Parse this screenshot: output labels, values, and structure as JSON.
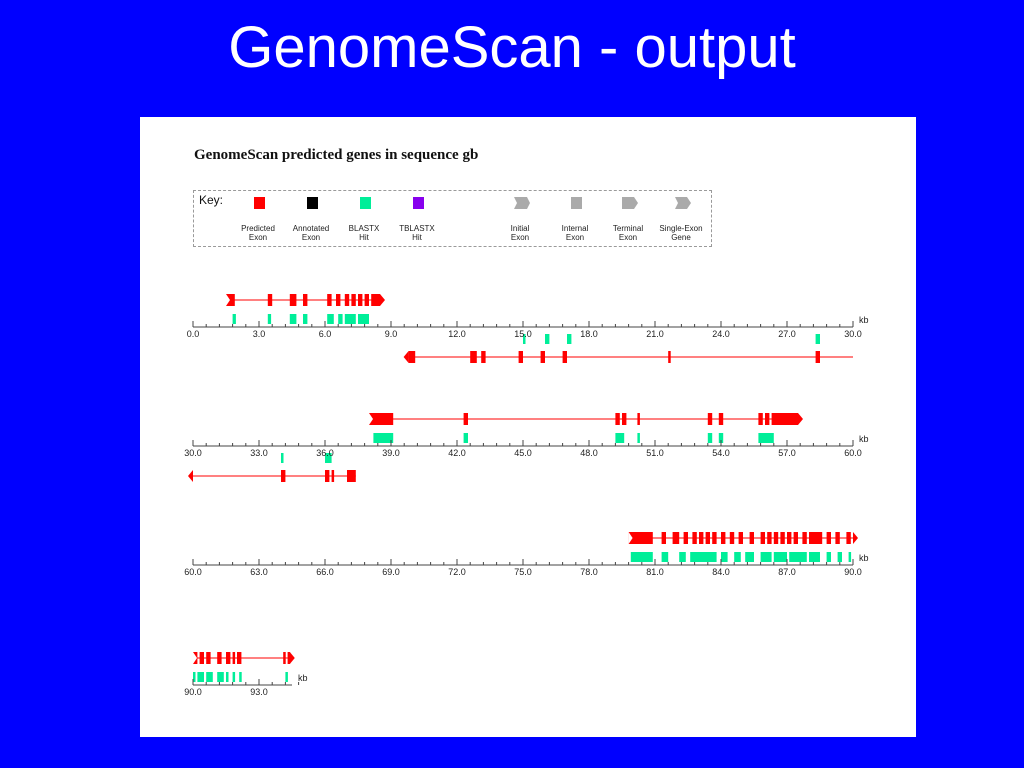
{
  "slide": {
    "title": "GenomeScan - output"
  },
  "figure": {
    "title": "GenomeScan predicted genes in sequence gb",
    "unit_label": "kb"
  },
  "key": {
    "label": "Key:",
    "items": [
      {
        "name": "predicted-exon",
        "line1": "Predicted",
        "line2": "Exon",
        "color": "#ff0000",
        "shape": "square"
      },
      {
        "name": "annotated-exon",
        "line1": "Annotated",
        "line2": "Exon",
        "color": "#000000",
        "shape": "square"
      },
      {
        "name": "blastx-hit",
        "line1": "BLASTX",
        "line2": "Hit",
        "color": "#00ee99",
        "shape": "square"
      },
      {
        "name": "tblastx-hit",
        "line1": "TBLASTX",
        "line2": "Hit",
        "color": "#8800ee",
        "shape": "square"
      },
      {
        "name": "initial-exon",
        "line1": "Initial",
        "line2": "Exon",
        "color": "#aaaaaa",
        "shape": "initial"
      },
      {
        "name": "internal-exon",
        "line1": "Internal",
        "line2": "Exon",
        "color": "#aaaaaa",
        "shape": "square"
      },
      {
        "name": "terminal-exon",
        "line1": "Terminal",
        "line2": "Exon",
        "color": "#aaaaaa",
        "shape": "terminal"
      },
      {
        "name": "single-exon-gene",
        "line1": "Single-Exon",
        "line2": "Gene",
        "color": "#aaaaaa",
        "shape": "single"
      }
    ]
  },
  "colors": {
    "exon": "#ff0000",
    "blastx": "#00ee99",
    "axis": "#444444"
  },
  "chart_data": {
    "type": "gene_map",
    "rows": [
      {
        "start": 0.0,
        "end": 30.0,
        "ticks": [
          "0.0",
          "3.0",
          "6.0",
          "9.0",
          "12.0",
          "15.0",
          "18.0",
          "21.0",
          "24.0",
          "27.0",
          "30.0"
        ],
        "forward_genes": [
          {
            "span": [
              1.5,
              8.5
            ],
            "exons": [
              [
                1.5,
                1.9
              ],
              [
                3.4,
                3.6
              ],
              [
                4.4,
                4.7
              ],
              [
                5.0,
                5.2
              ],
              [
                6.1,
                6.3
              ],
              [
                6.5,
                6.7
              ],
              [
                6.9,
                7.1
              ],
              [
                7.2,
                7.4
              ],
              [
                7.5,
                7.7
              ],
              [
                7.8,
                8.0
              ],
              [
                8.1,
                8.5
              ]
            ]
          }
        ],
        "forward_hits": [
          [
            1.8,
            1.95
          ],
          [
            3.4,
            3.55
          ],
          [
            4.4,
            4.7
          ],
          [
            5.0,
            5.2
          ],
          [
            6.1,
            6.4
          ],
          [
            6.6,
            6.8
          ],
          [
            6.9,
            7.4
          ],
          [
            7.5,
            8.0
          ]
        ],
        "reverse_genes": [
          {
            "span": [
              9.8,
              30.0
            ],
            "exons": [
              [
                9.8,
                10.1
              ],
              [
                12.6,
                12.9
              ],
              [
                13.1,
                13.3
              ],
              [
                14.8,
                15.0
              ],
              [
                15.8,
                16.0
              ],
              [
                16.8,
                17.0
              ],
              [
                21.6,
                21.7
              ],
              [
                28.3,
                28.5
              ]
            ]
          }
        ],
        "reverse_hits": [
          [
            15.0,
            15.1
          ],
          [
            16.0,
            16.2
          ],
          [
            17.0,
            17.2
          ],
          [
            28.3,
            28.5
          ]
        ]
      },
      {
        "start": 30.0,
        "end": 60.0,
        "ticks": [
          "30.0",
          "33.0",
          "36.0",
          "39.0",
          "42.0",
          "45.0",
          "48.0",
          "51.0",
          "54.0",
          "57.0",
          "60.0"
        ],
        "forward_genes": [
          {
            "span": [
              38.0,
              57.5
            ],
            "exons": [
              [
                38.0,
                39.1
              ],
              [
                42.3,
                42.5
              ],
              [
                49.2,
                49.4
              ],
              [
                49.5,
                49.7
              ],
              [
                50.2,
                50.3
              ],
              [
                53.4,
                53.6
              ],
              [
                53.9,
                54.1
              ],
              [
                55.7,
                55.9
              ],
              [
                56.0,
                56.2
              ],
              [
                56.3,
                57.5
              ]
            ]
          }
        ],
        "forward_hits": [
          [
            38.2,
            39.1
          ],
          [
            42.3,
            42.5
          ],
          [
            49.2,
            49.6
          ],
          [
            50.2,
            50.3
          ],
          [
            53.4,
            53.6
          ],
          [
            53.9,
            54.1
          ],
          [
            55.7,
            56.4
          ]
        ],
        "reverse_genes": [
          {
            "span": [
              30.0,
              37.4
            ],
            "exons": [
              [
                34.0,
                34.2
              ],
              [
                36.0,
                36.2
              ],
              [
                36.3,
                36.4
              ],
              [
                37.0,
                37.4
              ]
            ]
          }
        ],
        "reverse_hits": [
          [
            34.0,
            34.1
          ],
          [
            36.0,
            36.3
          ]
        ]
      },
      {
        "start": 60.0,
        "end": 90.0,
        "ticks": [
          "60.0",
          "63.0",
          "66.0",
          "69.0",
          "72.0",
          "75.0",
          "78.0",
          "81.0",
          "84.0",
          "87.0",
          "90.0"
        ],
        "forward_genes": [
          {
            "span": [
              79.8,
              90.0
            ],
            "exons": [
              [
                79.8,
                80.9
              ],
              [
                81.3,
                81.5
              ],
              [
                81.8,
                82.1
              ],
              [
                82.3,
                82.5
              ],
              [
                82.7,
                82.9
              ],
              [
                83.0,
                83.2
              ],
              [
                83.3,
                83.5
              ],
              [
                83.6,
                83.8
              ],
              [
                84.0,
                84.2
              ],
              [
                84.4,
                84.6
              ],
              [
                84.8,
                85.0
              ],
              [
                85.3,
                85.5
              ],
              [
                85.8,
                86.0
              ],
              [
                86.1,
                86.3
              ],
              [
                86.4,
                86.6
              ],
              [
                86.7,
                86.9
              ],
              [
                87.0,
                87.2
              ],
              [
                87.3,
                87.5
              ],
              [
                87.7,
                87.9
              ],
              [
                88.0,
                88.6
              ],
              [
                88.8,
                89.0
              ],
              [
                89.2,
                89.4
              ],
              [
                89.7,
                89.9
              ]
            ]
          }
        ],
        "forward_hits": [
          [
            79.9,
            80.9
          ],
          [
            81.3,
            81.6
          ],
          [
            82.1,
            82.4
          ],
          [
            82.6,
            83.8
          ],
          [
            84.0,
            84.3
          ],
          [
            84.6,
            84.9
          ],
          [
            85.1,
            85.5
          ],
          [
            85.8,
            86.3
          ],
          [
            86.4,
            87.0
          ],
          [
            87.1,
            87.9
          ],
          [
            88.0,
            88.5
          ],
          [
            88.8,
            89.0
          ],
          [
            89.3,
            89.5
          ],
          [
            89.8,
            89.9
          ]
        ],
        "reverse_genes": [],
        "reverse_hits": []
      },
      {
        "start": 90.0,
        "end": 94.5,
        "ticks": [
          "90.0",
          "93.0"
        ],
        "forward_genes": [
          {
            "span": [
              90.0,
              94.4
            ],
            "exons": [
              [
                90.0,
                90.2
              ],
              [
                90.3,
                90.5
              ],
              [
                90.6,
                90.8
              ],
              [
                91.1,
                91.3
              ],
              [
                91.5,
                91.7
              ],
              [
                91.8,
                91.9
              ],
              [
                92.0,
                92.2
              ],
              [
                94.1,
                94.2
              ],
              [
                94.3,
                94.4
              ]
            ]
          }
        ],
        "forward_hits": [
          [
            90.0,
            90.1
          ],
          [
            90.2,
            90.5
          ],
          [
            90.6,
            90.9
          ],
          [
            91.1,
            91.4
          ],
          [
            91.5,
            91.6
          ],
          [
            91.8,
            91.9
          ],
          [
            92.1,
            92.2
          ],
          [
            94.2,
            94.3
          ]
        ],
        "reverse_genes": [],
        "reverse_hits": []
      }
    ]
  }
}
